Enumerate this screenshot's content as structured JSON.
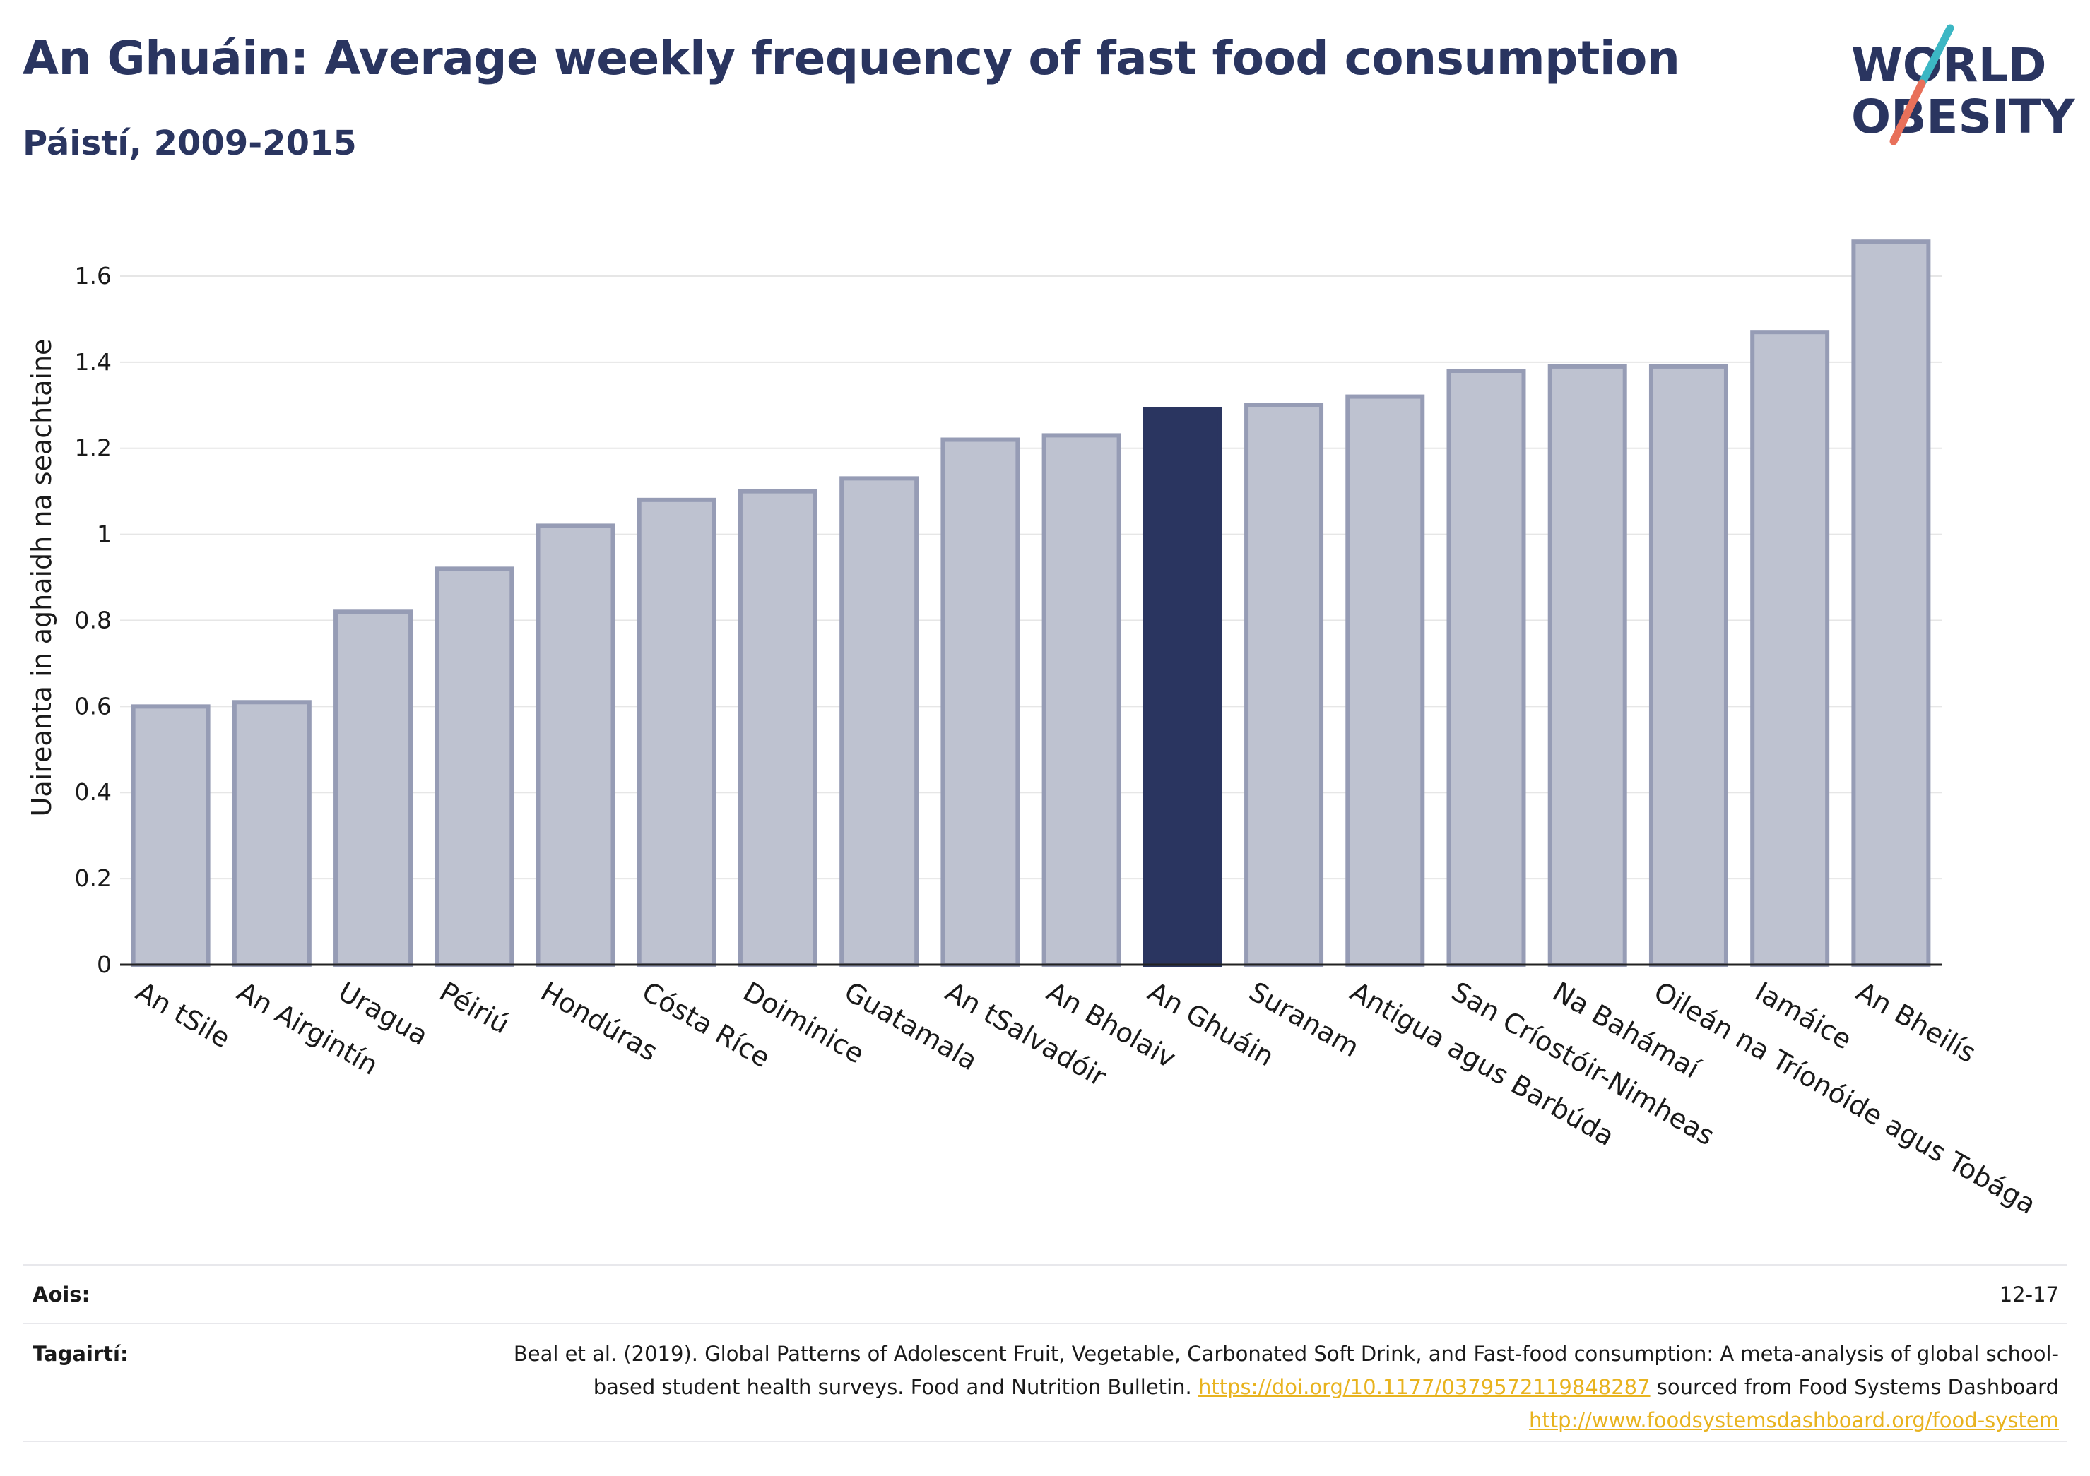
{
  "title": "An Ghuáin: Average weekly frequency of fast food consumption",
  "subtitle": "Páistí, 2009-2015",
  "logo": {
    "line1": "WORLD",
    "line2": "OBESITY",
    "colors": {
      "text": "#2a3560",
      "slash_top": "#3cb7c4",
      "slash_bottom": "#e8705a"
    }
  },
  "colors": {
    "bar": "#bec2d0",
    "bar_stroke": "#969cb5",
    "highlight": "#2a3560",
    "grid": "#e6e6e6",
    "axis": "#222222",
    "link": "#e8b31f"
  },
  "chart_data": {
    "type": "bar",
    "title": "An Ghuáin: Average weekly frequency of fast food consumption",
    "subtitle": "Páistí, 2009-2015",
    "xlabel": "",
    "ylabel": "Uaireanta in aghaidh na seachtaine",
    "ylim": [
      0,
      1.7
    ],
    "yticks": [
      0,
      0.2,
      0.4,
      0.6,
      0.8,
      1,
      1.2,
      1.4,
      1.6
    ],
    "ytick_labels": [
      "0",
      "0.2",
      "0.4",
      "0.6",
      "0.8",
      "1",
      "1.2",
      "1.4",
      "1.6"
    ],
    "grid": true,
    "categories": [
      "An tSile",
      "An Airgintín",
      "Uragua",
      "Péiriú",
      "Hondúras",
      "Cósta Ríce",
      "Doiminice",
      "Guatamala",
      "An tSalvadóir",
      "An Bholaiv",
      "An Ghuáin",
      "Suranam",
      "Antigua agus Barbúda",
      "San Críostóir-Nimheas",
      "Na Bahámaí",
      "Oileán na Tríonóide agus Tobága",
      "Iamáice",
      "An Bheilís"
    ],
    "values": [
      0.6,
      0.61,
      0.82,
      0.92,
      1.02,
      1.08,
      1.1,
      1.13,
      1.22,
      1.23,
      1.29,
      1.3,
      1.32,
      1.38,
      1.39,
      1.39,
      1.47,
      1.68
    ],
    "highlight": "An Ghuáin"
  },
  "footer": {
    "ages_label": "Aois:",
    "ages_value": "12-17",
    "references_label": "Tagairtí:",
    "references_text_1": "Beal et al. (2019). Global Patterns of Adolescent Fruit, Vegetable, Carbonated Soft Drink, and Fast-food consumption: A meta-analysis of global school-based student health surveys. Food and Nutrition Bulletin.",
    "references_link_1": "https://doi.org/10.1177/0379572119848287",
    "references_text_2": "sourced from Food Systems Dashboard",
    "references_link_2": "http://www.foodsystemsdashboard.org/food-system"
  }
}
